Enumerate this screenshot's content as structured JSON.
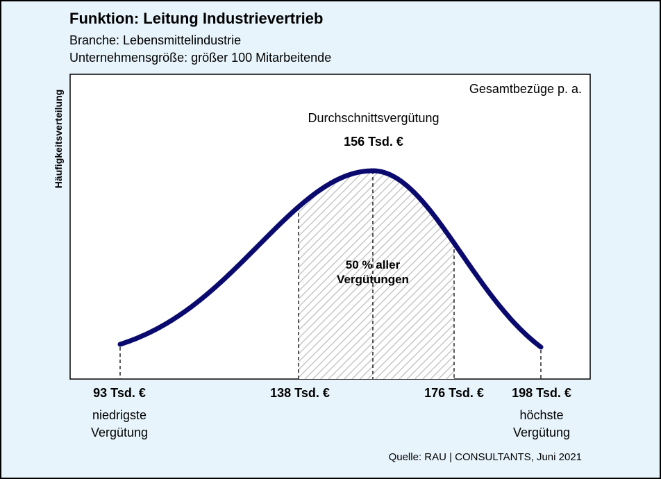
{
  "header": {
    "title": "Funktion: Leitung Industrievertrieb",
    "branch": "Branche: Lebensmittelindustrie",
    "size": "Unternehmensgröße: größer 100 Mitarbeitende"
  },
  "chart_data": {
    "type": "area",
    "ylabel": "Häufigkeitsverteilung",
    "metric": "Gesamtbezüge p. a.",
    "distribution": {
      "min": 93,
      "q1": 138,
      "mean": 156,
      "q3": 176,
      "max": 198,
      "unit": "Tsd. €"
    },
    "average": {
      "label": "Durchschnittsvergütung",
      "value": "156 Tsd. €"
    },
    "middle_share": {
      "label": "50 % aller\nVergütungen"
    },
    "markers": [
      {
        "value": "93 Tsd. €",
        "desc": "niedrigste\nVergütung"
      },
      {
        "value": "138 Tsd. €",
        "desc": ""
      },
      {
        "value": "176 Tsd. €",
        "desc": ""
      },
      {
        "value": "198 Tsd. €",
        "desc": "höchste\nVergütung"
      }
    ],
    "colors": {
      "curve": "#0a0a6e",
      "hatch": "#bdbdbd",
      "background": "#e8f4fc",
      "plot_background": "#ffffff"
    }
  },
  "footer": {
    "source": "Quelle: RAU | CONSULTANTS, Juni 2021"
  }
}
